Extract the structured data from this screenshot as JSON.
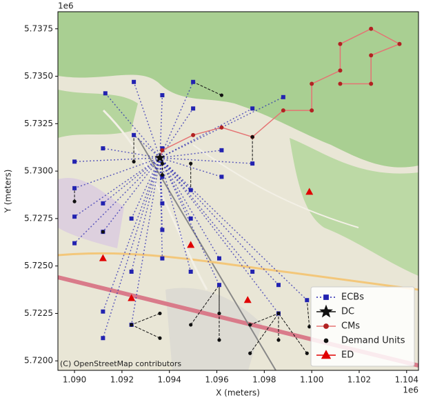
{
  "chart_data": {
    "type": "scatter",
    "x_label": "X (meters)",
    "y_label": "Y (meters)",
    "x_offset": "1e6",
    "y_offset": "1e6",
    "attribution": "(C) OpenStreetMap contributors",
    "xlim": [
      1.0893,
      1.1045
    ],
    "ylim": [
      5.7195,
      5.7384
    ],
    "xticks": [
      {
        "value": 1.09,
        "label": "1.090"
      },
      {
        "value": 1.092,
        "label": "1.092"
      },
      {
        "value": 1.094,
        "label": "1.094"
      },
      {
        "value": 1.096,
        "label": "1.096"
      },
      {
        "value": 1.098,
        "label": "1.098"
      },
      {
        "value": 1.1,
        "label": "1.100"
      },
      {
        "value": 1.102,
        "label": "1.102"
      },
      {
        "value": 1.104,
        "label": "1.104"
      }
    ],
    "yticks": [
      {
        "value": 5.72,
        "label": "5.7200"
      },
      {
        "value": 5.7225,
        "label": "5.7225"
      },
      {
        "value": 5.725,
        "label": "5.7250"
      },
      {
        "value": 5.7275,
        "label": "5.7275"
      },
      {
        "value": 5.73,
        "label": "5.7300"
      },
      {
        "value": 5.7325,
        "label": "5.7325"
      },
      {
        "value": 5.735,
        "label": "5.7350"
      },
      {
        "value": 5.7375,
        "label": "5.7375"
      }
    ],
    "legend": "lower right",
    "series": [
      {
        "name": "ECBs",
        "color": "#2323b0",
        "marker": "square",
        "x": [
          1.0913,
          1.0925,
          1.095,
          1.0937,
          1.095,
          1.0975,
          1.0988,
          1.09,
          1.0912,
          1.0925,
          1.0937,
          1.0937,
          1.09,
          1.0912,
          1.09,
          1.0912,
          1.09,
          1.0924,
          1.0937,
          1.0937,
          1.0949,
          1.0949,
          1.0962,
          1.0975,
          1.0962,
          1.0937,
          1.0949,
          1.0961,
          1.0975,
          1.0986,
          1.0998,
          1.0912,
          1.0912,
          1.0924,
          1.0961,
          1.0986,
          1.0924
        ],
        "y": [
          5.7341,
          5.7347,
          5.7347,
          5.734,
          5.7333,
          5.7333,
          5.7339,
          5.7305,
          5.7312,
          5.7319,
          5.7312,
          5.7297,
          5.7291,
          5.7283,
          5.7276,
          5.7268,
          5.7262,
          5.7275,
          5.7283,
          5.7269,
          5.7275,
          5.729,
          5.7297,
          5.7304,
          5.7311,
          5.7254,
          5.7247,
          5.7254,
          5.7247,
          5.724,
          5.7232,
          5.7226,
          5.7212,
          5.7219,
          5.724,
          5.7225,
          5.7247
        ]
      },
      {
        "name": "DC",
        "color": "#111111",
        "marker": "star",
        "x": [
          1.0936
        ],
        "y": [
          5.7307
        ]
      },
      {
        "name": "CMs",
        "color": "#d9534f",
        "marker": "circle-line",
        "x": [
          1.0937,
          1.095,
          1.0962,
          1.0975,
          1.0988,
          1.1,
          1.1,
          1.1012,
          1.1012,
          1.1025,
          1.1037,
          1.1025,
          1.1025,
          1.1012
        ],
        "y": [
          5.7311,
          5.7319,
          5.7323,
          5.7318,
          5.7332,
          5.7332,
          5.7346,
          5.7353,
          5.7367,
          5.7375,
          5.7367,
          5.7361,
          5.7346,
          5.7346
        ]
      },
      {
        "name": "Demand Units",
        "color": "#111111",
        "marker": "dot",
        "x": [
          1.0925,
          1.0937,
          1.0949,
          1.0975,
          1.0962,
          1.0936,
          1.0936,
          1.0949,
          1.0961,
          1.0961,
          1.0974,
          1.0986,
          1.0986,
          1.0999,
          1.0998,
          1.0974,
          1.0924,
          1.09,
          1.0912,
          1.0937
        ],
        "y": [
          5.7305,
          5.7304,
          5.7304,
          5.7318,
          5.734,
          5.7225,
          5.7212,
          5.7219,
          5.7211,
          5.7225,
          5.7219,
          5.7225,
          5.7211,
          5.7218,
          5.7204,
          5.7204,
          5.7219,
          5.7284,
          5.7268,
          5.7298
        ]
      },
      {
        "name": "ED",
        "color": "#e00000",
        "marker": "triangle",
        "x": [
          1.0999,
          1.0912,
          1.0949,
          1.0924,
          1.0973
        ],
        "y": [
          5.7289,
          5.7254,
          5.7261,
          5.7233,
          5.7232
        ]
      }
    ]
  }
}
